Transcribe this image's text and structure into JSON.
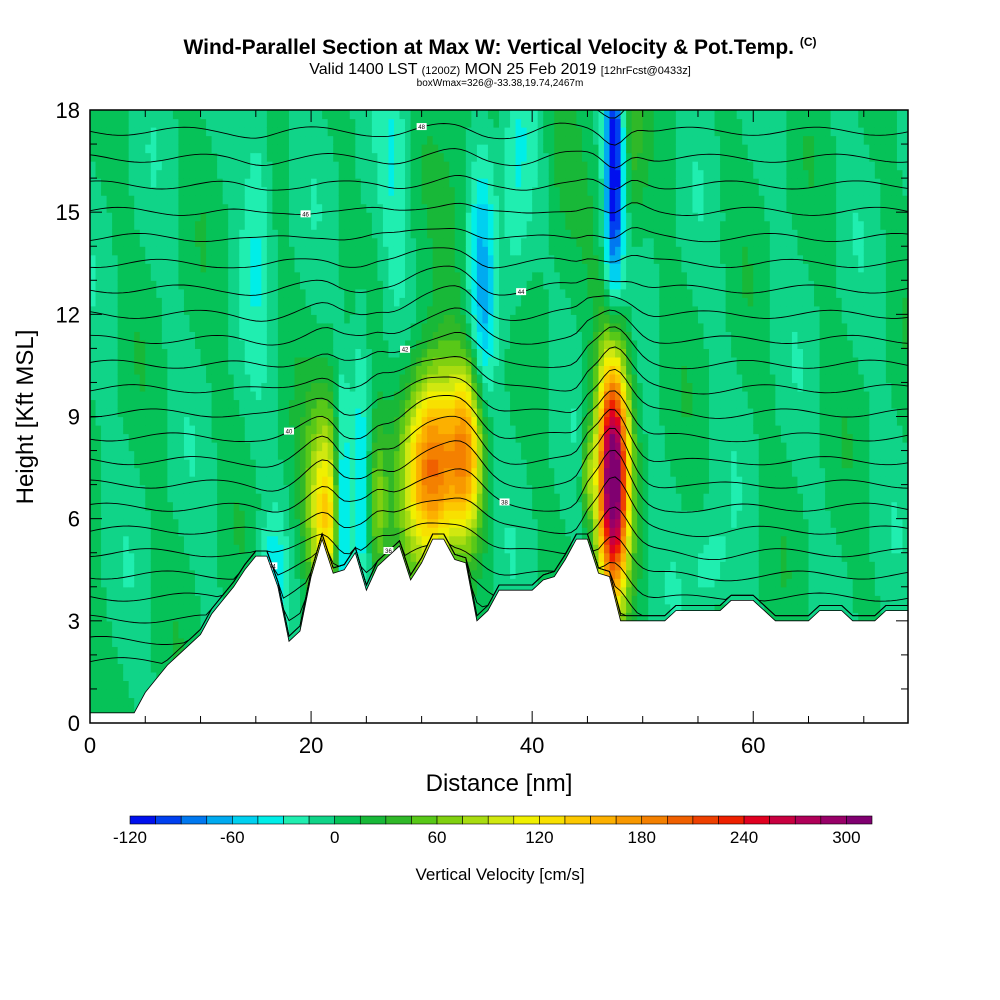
{
  "title": "Wind-Parallel Section at Max W: Vertical Velocity & Pot.Temp.",
  "title_mark": "(C)",
  "subtitle": {
    "valid": "Valid 1400 LST",
    "utc": "(1200Z)",
    "date": "MON 25 Feb 2019",
    "fcst": "[12hrFcst@0433z]"
  },
  "subnote": "boxWmax=326@-33.38,19.74,2467m",
  "chart_data": {
    "type": "heatmap",
    "xlabel": "Distance [nm]",
    "ylabel": "Height [Kft MSL]",
    "xlim": [
      0,
      74
    ],
    "ylim": [
      0,
      18
    ],
    "x_ticks": [
      "0",
      "20",
      "40",
      "60"
    ],
    "y_ticks": [
      "0",
      "3",
      "6",
      "9",
      "12",
      "15",
      "18"
    ],
    "colorbar": {
      "title": "Vertical Velocity [cm/s]",
      "tick_labels": [
        "-120",
        "-60",
        "0",
        "60",
        "120",
        "180",
        "240",
        "300"
      ],
      "levels": [
        -120,
        -105,
        -90,
        -75,
        -60,
        -45,
        -30,
        -15,
        0,
        15,
        30,
        45,
        60,
        75,
        90,
        105,
        120,
        135,
        150,
        165,
        180,
        195,
        210,
        225,
        240,
        255,
        270,
        285,
        300,
        315
      ],
      "colors": [
        "#0010ee",
        "#0040f0",
        "#0078f0",
        "#00aaf0",
        "#00d0f0",
        "#00eee8",
        "#20eeb0",
        "#10d488",
        "#06c258",
        "#18b838",
        "#30b828",
        "#58c818",
        "#80d010",
        "#a8dc10",
        "#d0e810",
        "#f0f000",
        "#f8e000",
        "#fcc800",
        "#fcb000",
        "#f89800",
        "#f48000",
        "#f06000",
        "#ee4000",
        "#ee2000",
        "#e00020",
        "#c80040",
        "#b00058",
        "#980068",
        "#800070"
      ]
    },
    "background_w": 0,
    "max_w": {
      "value": 326,
      "lat": -33.38,
      "lon": 19.74,
      "height_m": 2467
    },
    "terrain_kft": [
      [
        0,
        0.3
      ],
      [
        4,
        0.3
      ],
      [
        5,
        0.9
      ],
      [
        6,
        1.3
      ],
      [
        7,
        1.7
      ],
      [
        8,
        2.0
      ],
      [
        9,
        2.3
      ],
      [
        10,
        2.6
      ],
      [
        11,
        3.2
      ],
      [
        12,
        3.6
      ],
      [
        13,
        4.0
      ],
      [
        14,
        4.5
      ],
      [
        15,
        4.9
      ],
      [
        16,
        4.9
      ],
      [
        17,
        4.0
      ],
      [
        18,
        2.4
      ],
      [
        19,
        2.7
      ],
      [
        20,
        4.3
      ],
      [
        21,
        5.4
      ],
      [
        22,
        4.4
      ],
      [
        23,
        4.5
      ],
      [
        24,
        5.0
      ],
      [
        25,
        3.9
      ],
      [
        26,
        4.6
      ],
      [
        27,
        4.9
      ],
      [
        28,
        5.2
      ],
      [
        29,
        4.2
      ],
      [
        30,
        4.7
      ],
      [
        31,
        5.4
      ],
      [
        32,
        5.4
      ],
      [
        33,
        4.8
      ],
      [
        34,
        4.7
      ],
      [
        35,
        3.0
      ],
      [
        36,
        3.3
      ],
      [
        37,
        3.9
      ],
      [
        38,
        3.9
      ],
      [
        40,
        3.9
      ],
      [
        41,
        4.2
      ],
      [
        42,
        4.3
      ],
      [
        43,
        4.8
      ],
      [
        44,
        5.4
      ],
      [
        45,
        5.4
      ],
      [
        46,
        4.4
      ],
      [
        47,
        4.3
      ],
      [
        48,
        3.0
      ],
      [
        52,
        3.0
      ],
      [
        53,
        3.3
      ],
      [
        57,
        3.3
      ],
      [
        58,
        3.6
      ],
      [
        60,
        3.6
      ],
      [
        61,
        3.3
      ],
      [
        62,
        3.0
      ],
      [
        65,
        3.0
      ],
      [
        66,
        3.3
      ],
      [
        68,
        3.3
      ],
      [
        69,
        3.0
      ],
      [
        71,
        3.0
      ],
      [
        72,
        3.3
      ],
      [
        74,
        3.3
      ]
    ],
    "features": [
      {
        "kind": "updraft",
        "x": 21.5,
        "z": 6.2,
        "sx": 1.3,
        "sz": 2.2,
        "w": 140
      },
      {
        "kind": "updraft",
        "x": 30.8,
        "z": 7.5,
        "sx": 1.8,
        "sz": 2.0,
        "w": 200
      },
      {
        "kind": "updraft",
        "x": 34.2,
        "z": 8.0,
        "sx": 1.1,
        "sz": 1.8,
        "w": 135
      },
      {
        "kind": "updraft",
        "x": 47.3,
        "z": 7.2,
        "sx": 1.0,
        "sz": 2.6,
        "w": 326
      },
      {
        "kind": "updraft",
        "x": 45.0,
        "z": 7.4,
        "sx": 0.4,
        "sz": 1.0,
        "w": 60
      },
      {
        "kind": "updraft",
        "x": 26.0,
        "z": 6.5,
        "sx": 0.6,
        "sz": 1.6,
        "w": 60
      },
      {
        "kind": "downdraft",
        "x": 22.8,
        "z": 6.0,
        "sx": 0.5,
        "sz": 2.5,
        "w": -110
      },
      {
        "kind": "downdraft",
        "x": 24.5,
        "z": 7.5,
        "sx": 0.6,
        "sz": 4.0,
        "w": -40
      },
      {
        "kind": "downdraft",
        "x": 35.5,
        "z": 12.5,
        "sx": 0.8,
        "sz": 3.0,
        "w": -60
      },
      {
        "kind": "downdraft",
        "x": 47.4,
        "z": 16.0,
        "sx": 0.6,
        "sz": 2.8,
        "w": -125
      },
      {
        "kind": "downdraft",
        "x": 16.5,
        "z": 4.5,
        "sx": 0.8,
        "sz": 1.2,
        "w": -35
      },
      {
        "kind": "downdraft",
        "x": 56.0,
        "z": 4.6,
        "sx": 1.2,
        "sz": 1.0,
        "w": -25
      },
      {
        "kind": "downdraft",
        "x": 15.2,
        "z": 15.5,
        "sx": 0.9,
        "sz": 3.0,
        "w": -30
      },
      {
        "kind": "downdraft",
        "x": 38.5,
        "z": 16.0,
        "sx": 1.0,
        "sz": 3.0,
        "w": -30
      },
      {
        "kind": "downdraft",
        "x": 27.5,
        "z": 16.0,
        "sx": 1.0,
        "sz": 3.0,
        "w": -25
      },
      {
        "kind": "updraft",
        "x": 42.5,
        "z": 17.0,
        "sx": 1.2,
        "sz": 2.0,
        "w": 25
      },
      {
        "kind": "updraft",
        "x": 49.2,
        "z": 17.0,
        "sx": 0.7,
        "sz": 2.0,
        "w": 30
      },
      {
        "kind": "updraft",
        "x": 33.0,
        "z": 14.0,
        "sx": 1.2,
        "sz": 3.0,
        "w": 20
      }
    ],
    "theta_contour_labels": [
      "34",
      "36",
      "38",
      "40",
      "42",
      "44",
      "46",
      "48"
    ]
  }
}
